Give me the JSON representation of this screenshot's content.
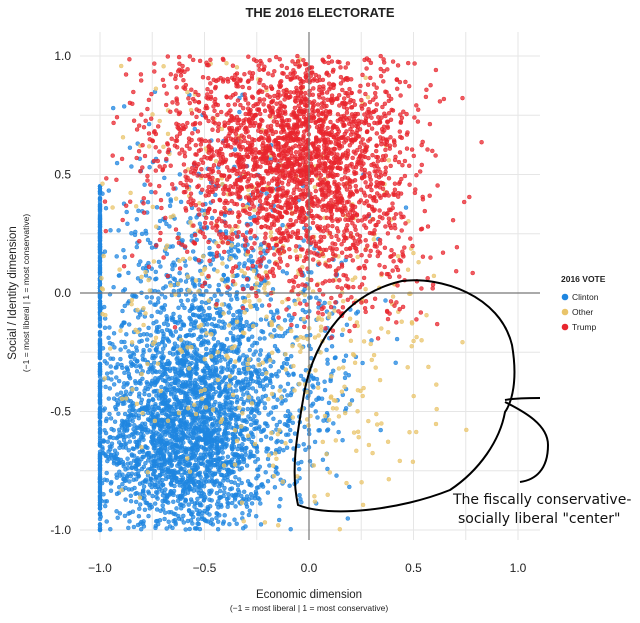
{
  "chart_data": {
    "type": "scatter",
    "title": "THE 2016 ELECTORATE",
    "xlabel": "Economic dimension",
    "xlabel_sub": "(−1 = most liberal | 1 = most conservative)",
    "ylabel": "Social / Identity dimension",
    "ylabel_sub": "(−1 = most liberal | 1 = most conservative)",
    "xlim": [
      -1.1,
      1.1
    ],
    "ylim": [
      -1.1,
      1.1
    ],
    "x_ticks": [
      "−1.0",
      "−0.5",
      "0.0",
      "0.5",
      "1.0"
    ],
    "y_ticks": [
      "1.0",
      "0.5",
      "0.0",
      "-0.5",
      "-1.0"
    ],
    "grid": true,
    "legend": {
      "title": "2016 VOTE",
      "position": "right",
      "entries": [
        "Clinton",
        "Other",
        "Trump"
      ]
    },
    "series": [
      {
        "name": "Clinton",
        "color": "#1f86e0",
        "clusters": [
          {
            "cx": -0.6,
            "cy": -0.62,
            "sx": 0.2,
            "sy": 0.22,
            "n": 2000
          },
          {
            "cx": -0.55,
            "cy": -0.25,
            "sx": 0.28,
            "sy": 0.28,
            "n": 700
          },
          {
            "cx": -0.25,
            "cy": -0.35,
            "sx": 0.28,
            "sy": 0.3,
            "n": 500
          },
          {
            "cx": -0.6,
            "cy": 0.15,
            "sx": 0.25,
            "sy": 0.35,
            "n": 250
          }
        ],
        "vertical_line_x": -1.0,
        "vertical_line_n": 350
      },
      {
        "name": "Other",
        "color": "#e9c46a",
        "clusters": [
          {
            "cx": -0.35,
            "cy": 0.05,
            "sx": 0.4,
            "sy": 0.45,
            "n": 400
          },
          {
            "cx": 0.15,
            "cy": -0.35,
            "sx": 0.25,
            "sy": 0.35,
            "n": 120
          }
        ]
      },
      {
        "name": "Trump",
        "color": "#e8262e",
        "clusters": [
          {
            "cx": 0.0,
            "cy": 0.6,
            "sx": 0.25,
            "sy": 0.22,
            "n": 1600
          },
          {
            "cx": -0.35,
            "cy": 0.6,
            "sx": 0.28,
            "sy": 0.25,
            "n": 700
          },
          {
            "cx": 0.15,
            "cy": 0.25,
            "sx": 0.2,
            "sy": 0.2,
            "n": 350
          }
        ]
      }
    ],
    "annotation": {
      "lines": [
        "The fiscally conservative-",
        "socially liberal \"center\""
      ],
      "kind": "hand-drawn loop around the lower-right quadrant"
    }
  }
}
